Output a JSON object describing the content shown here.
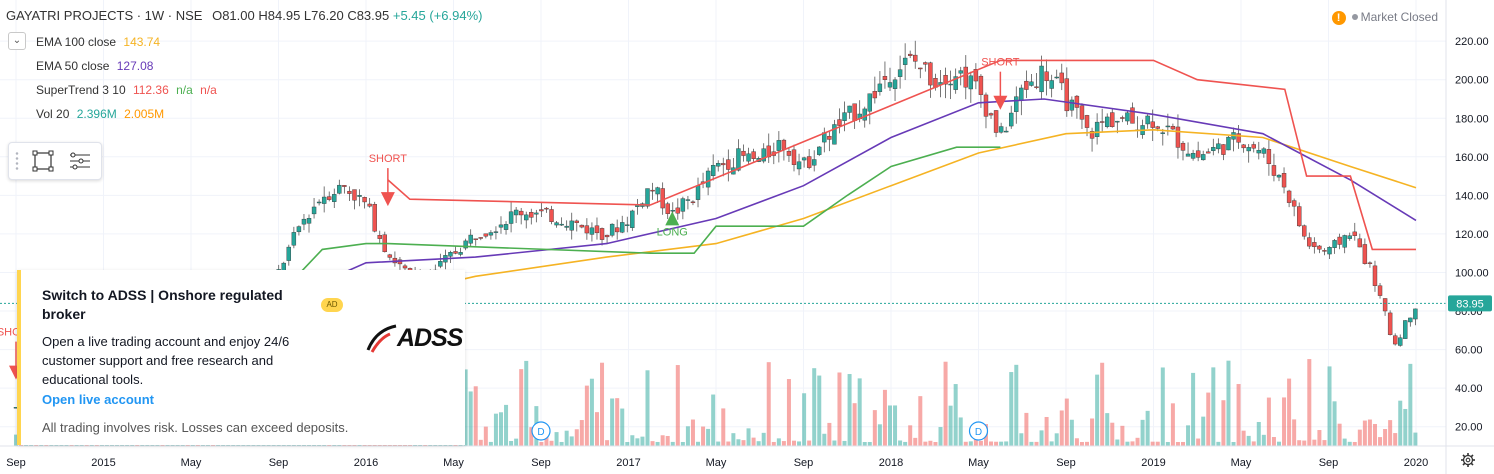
{
  "header": {
    "symbol": "GAYATRI PROJECTS · 1W · NSE",
    "open": "O81.00",
    "high": "H84.95",
    "low": "L76.20",
    "close": "C83.95",
    "change": "+5.45 (+6.94%)"
  },
  "indicators": [
    {
      "name": "EMA 100 close",
      "value": "143.74",
      "value2": "",
      "value3": "",
      "color": "#f5b323"
    },
    {
      "name": "EMA 50 close",
      "value": "127.08",
      "value2": "",
      "value3": "",
      "color": "#673ab7"
    },
    {
      "name": "SuperTrend 3 10",
      "value": "112.36",
      "value2": "n/a",
      "value3": "n/a",
      "color": "#ef5350"
    },
    {
      "name": "Vol 20",
      "value": "2.396M",
      "value2": "2.005M",
      "value3": "",
      "color": "#26a69a"
    }
  ],
  "market_status": {
    "icon": "!",
    "label": "Market Closed"
  },
  "ad": {
    "title": "Switch to ADSS | Onshore regulated broker",
    "description": "Open a live trading account and enjoy 24/6 customer support and free research and educational tools.",
    "link": "Open live account",
    "warning": "All trading involves risk. Losses can exceed deposits.",
    "badge": "AD",
    "brand": "ADSS"
  },
  "chart_data": {
    "type": "candlestick",
    "y_axis_ticks": [
      20,
      40,
      60,
      80,
      100,
      120,
      140,
      160,
      180,
      200,
      220
    ],
    "y_tick_labels": [
      "20.00",
      "40.00",
      "60.00",
      "80.00",
      "100.00",
      "120.00",
      "140.00",
      "160.00",
      "180.00",
      "200.00",
      "220.00"
    ],
    "ylim": [
      10,
      232
    ],
    "x_axis_labels": [
      "Sep",
      "2015",
      "May",
      "Sep",
      "2016",
      "May",
      "Sep",
      "2017",
      "May",
      "Sep",
      "2018",
      "May",
      "Sep",
      "2019",
      "May",
      "Sep",
      "2020"
    ],
    "x_axis_dates": [
      "2014-09",
      "2015-01",
      "2015-05",
      "2015-09",
      "2016-01",
      "2016-05",
      "2016-09",
      "2017-01",
      "2017-05",
      "2017-09",
      "2018-01",
      "2018-05",
      "2018-09",
      "2019-01",
      "2019-05",
      "2019-09",
      "2020-01"
    ],
    "last_price": 83.95,
    "last_price_label": "83.95",
    "price_path": [
      [
        "2014-09",
        30
      ],
      [
        "2014-12",
        34
      ],
      [
        "2015-03",
        45
      ],
      [
        "2015-06",
        62
      ],
      [
        "2015-08",
        85
      ],
      [
        "2015-09",
        100
      ],
      [
        "2015-10",
        125
      ],
      [
        "2015-11",
        140
      ],
      [
        "2015-12",
        145
      ],
      [
        "2016-01",
        135
      ],
      [
        "2016-02",
        110
      ],
      [
        "2016-03",
        98
      ],
      [
        "2016-04",
        100
      ],
      [
        "2016-05",
        110
      ],
      [
        "2016-06",
        120
      ],
      [
        "2016-07",
        125
      ],
      [
        "2016-08",
        132
      ],
      [
        "2016-09",
        130
      ],
      [
        "2016-10",
        128
      ],
      [
        "2016-11",
        123
      ],
      [
        "2016-12",
        120
      ],
      [
        "2017-01",
        128
      ],
      [
        "2017-02",
        145
      ],
      [
        "2017-03",
        130
      ],
      [
        "2017-04",
        140
      ],
      [
        "2017-05",
        155
      ],
      [
        "2017-06",
        160
      ],
      [
        "2017-07",
        158
      ],
      [
        "2017-08",
        168
      ],
      [
        "2017-09",
        155
      ],
      [
        "2017-10",
        170
      ],
      [
        "2017-11",
        180
      ],
      [
        "2017-12",
        190
      ],
      [
        "2018-01",
        205
      ],
      [
        "2018-02",
        210
      ],
      [
        "2018-03",
        200
      ],
      [
        "2018-04",
        205
      ],
      [
        "2018-05",
        195
      ],
      [
        "2018-06",
        170
      ],
      [
        "2018-07",
        195
      ],
      [
        "2018-08",
        205
      ],
      [
        "2018-09",
        190
      ],
      [
        "2018-10",
        172
      ],
      [
        "2018-11",
        180
      ],
      [
        "2018-12",
        178
      ],
      [
        "2019-01",
        180
      ],
      [
        "2019-02",
        170
      ],
      [
        "2019-03",
        160
      ],
      [
        "2019-04",
        165
      ],
      [
        "2019-05",
        170
      ],
      [
        "2019-06",
        162
      ],
      [
        "2019-07",
        145
      ],
      [
        "2019-08",
        115
      ],
      [
        "2019-09",
        110
      ],
      [
        "2019-10",
        122
      ],
      [
        "2019-11",
        100
      ],
      [
        "2019-12",
        62
      ],
      [
        "2020-01",
        84
      ]
    ],
    "series": [
      {
        "name": "EMA 100 close",
        "color": "#f5b323",
        "points": [
          [
            "2015-09",
            70
          ],
          [
            "2016-01",
            85
          ],
          [
            "2016-06",
            98
          ],
          [
            "2016-12",
            108
          ],
          [
            "2017-05",
            115
          ],
          [
            "2017-09",
            128
          ],
          [
            "2018-01",
            145
          ],
          [
            "2018-05",
            162
          ],
          [
            "2018-09",
            172
          ],
          [
            "2019-01",
            174
          ],
          [
            "2019-06",
            170
          ],
          [
            "2019-10",
            155
          ],
          [
            "2020-01",
            144
          ]
        ]
      },
      {
        "name": "EMA 50 close",
        "color": "#673ab7",
        "points": [
          [
            "2015-09",
            85
          ],
          [
            "2016-01",
            105
          ],
          [
            "2016-06",
            108
          ],
          [
            "2016-12",
            115
          ],
          [
            "2017-05",
            128
          ],
          [
            "2017-09",
            145
          ],
          [
            "2018-01",
            170
          ],
          [
            "2018-05",
            188
          ],
          [
            "2018-08",
            190
          ],
          [
            "2019-01",
            182
          ],
          [
            "2019-06",
            172
          ],
          [
            "2019-10",
            148
          ],
          [
            "2020-01",
            127
          ]
        ]
      },
      {
        "name": "SuperTrend up",
        "color": "#4caf50",
        "points": [
          [
            "2015-09",
            88
          ],
          [
            "2015-11",
            112
          ],
          [
            "2016-01",
            115
          ],
          [
            "2016-02",
            115
          ],
          [
            "2017-02",
            110
          ],
          [
            "2017-04",
            110
          ],
          [
            "2017-05",
            124
          ],
          [
            "2017-09",
            124
          ],
          [
            "2017-11",
            140
          ],
          [
            "2018-01",
            155
          ],
          [
            "2018-04",
            165
          ],
          [
            "2018-06",
            165
          ]
        ]
      },
      {
        "name": "SuperTrend down",
        "color": "#ef5350",
        "points": [
          [
            "2016-02",
            148
          ],
          [
            "2016-03",
            138
          ],
          [
            "2017-02",
            135
          ],
          [
            "2018-06",
            210
          ],
          [
            "2019-01",
            210
          ],
          [
            "2019-03",
            200
          ],
          [
            "2019-07",
            195
          ],
          [
            "2019-08",
            150
          ],
          [
            "2019-10",
            150
          ],
          [
            "2019-11",
            112
          ],
          [
            "2020-01",
            112
          ]
        ]
      }
    ],
    "annotations": [
      {
        "text": "SHORT",
        "date": "2016-02",
        "value": 150,
        "color": "#ef5350"
      },
      {
        "text": "LONG",
        "date": "2017-03",
        "value": 112,
        "color": "#4caf50"
      },
      {
        "text": "SHORT",
        "date": "2018-06",
        "value": 200,
        "color": "#ef5350"
      },
      {
        "text": "SHORT",
        "date": "2014-09",
        "value": 60,
        "color": "#ef5350"
      }
    ],
    "events": [
      {
        "label": "D",
        "date": "2016-09"
      },
      {
        "label": "D",
        "date": "2018-05"
      }
    ],
    "grid": true
  }
}
